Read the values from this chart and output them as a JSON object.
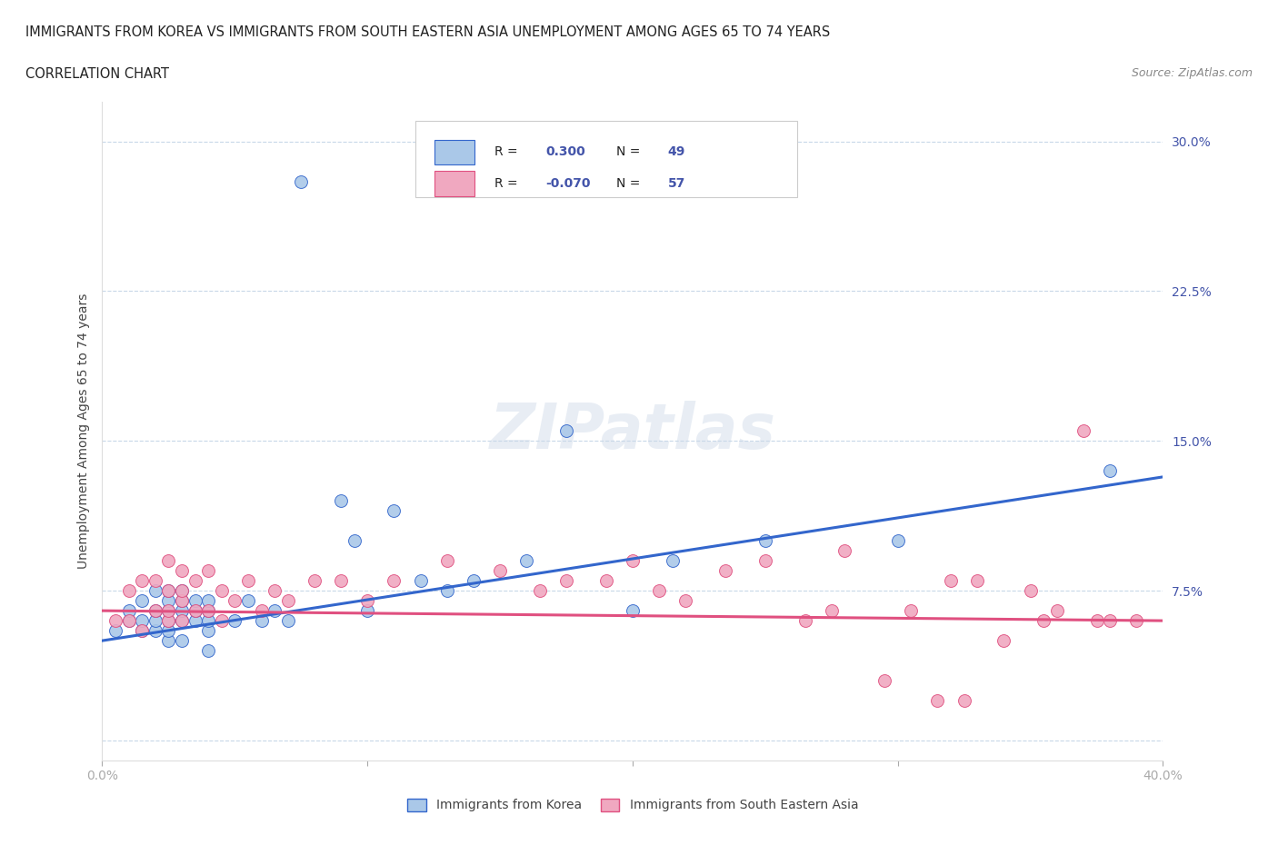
{
  "title_line1": "IMMIGRANTS FROM KOREA VS IMMIGRANTS FROM SOUTH EASTERN ASIA UNEMPLOYMENT AMONG AGES 65 TO 74 YEARS",
  "title_line2": "CORRELATION CHART",
  "source_text": "Source: ZipAtlas.com",
  "ylabel": "Unemployment Among Ages 65 to 74 years",
  "xlim": [
    0.0,
    0.4
  ],
  "ylim": [
    -0.01,
    0.32
  ],
  "korea_color": "#aac8e8",
  "sea_color": "#f0a8c0",
  "korea_line_color": "#3366cc",
  "sea_line_color": "#e05080",
  "legend_label_korea": "Immigrants from Korea",
  "legend_label_sea": "Immigrants from South Eastern Asia",
  "background_color": "#ffffff",
  "grid_color": "#c8d8e8",
  "axis_color": "#4455aa",
  "korea_scatter_x": [
    0.005,
    0.01,
    0.01,
    0.015,
    0.015,
    0.015,
    0.02,
    0.02,
    0.02,
    0.02,
    0.025,
    0.025,
    0.025,
    0.025,
    0.025,
    0.025,
    0.03,
    0.03,
    0.03,
    0.03,
    0.03,
    0.035,
    0.035,
    0.035,
    0.04,
    0.04,
    0.04,
    0.04,
    0.04,
    0.05,
    0.055,
    0.06,
    0.065,
    0.07,
    0.075,
    0.09,
    0.095,
    0.1,
    0.11,
    0.12,
    0.13,
    0.14,
    0.16,
    0.175,
    0.2,
    0.215,
    0.25,
    0.3,
    0.38
  ],
  "korea_scatter_y": [
    0.055,
    0.06,
    0.065,
    0.055,
    0.06,
    0.07,
    0.055,
    0.06,
    0.065,
    0.075,
    0.05,
    0.055,
    0.06,
    0.065,
    0.07,
    0.075,
    0.05,
    0.06,
    0.065,
    0.07,
    0.075,
    0.06,
    0.065,
    0.07,
    0.045,
    0.055,
    0.06,
    0.065,
    0.07,
    0.06,
    0.07,
    0.06,
    0.065,
    0.06,
    0.28,
    0.12,
    0.1,
    0.065,
    0.115,
    0.08,
    0.075,
    0.08,
    0.09,
    0.155,
    0.065,
    0.09,
    0.1,
    0.1,
    0.135
  ],
  "sea_scatter_x": [
    0.005,
    0.01,
    0.01,
    0.015,
    0.015,
    0.02,
    0.02,
    0.025,
    0.025,
    0.025,
    0.025,
    0.03,
    0.03,
    0.03,
    0.03,
    0.035,
    0.035,
    0.04,
    0.04,
    0.045,
    0.045,
    0.05,
    0.055,
    0.06,
    0.065,
    0.07,
    0.08,
    0.09,
    0.1,
    0.11,
    0.13,
    0.15,
    0.165,
    0.175,
    0.19,
    0.2,
    0.21,
    0.22,
    0.235,
    0.25,
    0.265,
    0.275,
    0.28,
    0.295,
    0.305,
    0.315,
    0.32,
    0.325,
    0.33,
    0.34,
    0.35,
    0.355,
    0.36,
    0.37,
    0.375,
    0.38,
    0.39
  ],
  "sea_scatter_y": [
    0.06,
    0.06,
    0.075,
    0.055,
    0.08,
    0.065,
    0.08,
    0.06,
    0.065,
    0.075,
    0.09,
    0.06,
    0.07,
    0.075,
    0.085,
    0.065,
    0.08,
    0.065,
    0.085,
    0.06,
    0.075,
    0.07,
    0.08,
    0.065,
    0.075,
    0.07,
    0.08,
    0.08,
    0.07,
    0.08,
    0.09,
    0.085,
    0.075,
    0.08,
    0.08,
    0.09,
    0.075,
    0.07,
    0.085,
    0.09,
    0.06,
    0.065,
    0.095,
    0.03,
    0.065,
    0.02,
    0.08,
    0.02,
    0.08,
    0.05,
    0.075,
    0.06,
    0.065,
    0.155,
    0.06,
    0.06,
    0.06
  ],
  "korea_trend_x": [
    0.0,
    0.4
  ],
  "korea_trend_y": [
    0.05,
    0.132
  ],
  "sea_trend_x": [
    0.0,
    0.4
  ],
  "sea_trend_y": [
    0.065,
    0.06
  ]
}
